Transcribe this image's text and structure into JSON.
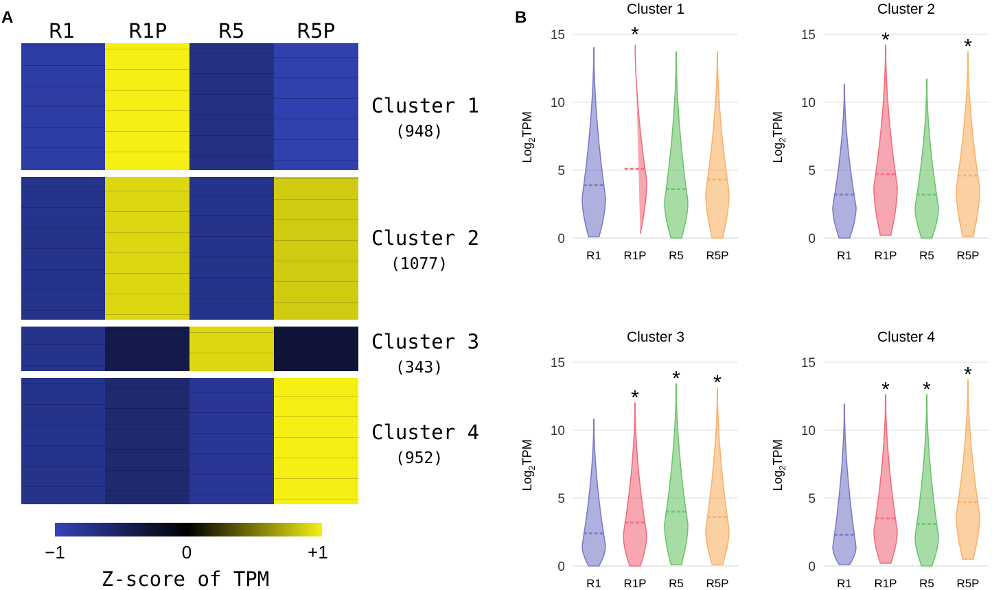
{
  "panel_a": {
    "letter": "A",
    "columns": [
      "R1",
      "R1P",
      "R5",
      "R5P"
    ],
    "clusters": [
      {
        "name": "Cluster 1",
        "count": "(948)"
      },
      {
        "name": "Cluster 2",
        "count": "(1077)"
      },
      {
        "name": "Cluster 3",
        "count": "(343)"
      },
      {
        "name": "Cluster 4",
        "count": "(952)"
      }
    ],
    "colorbar": {
      "min_label": "−1",
      "mid_label": "0",
      "max_label": "+1",
      "title": "Z-score of TPM",
      "colors": {
        "low": "#3344b8",
        "mid": "#000000",
        "high": "#f5ef14"
      }
    }
  },
  "panel_b": {
    "letter": "B",
    "ylabel_base": "Log",
    "ylabel_sub": "2",
    "ylabel_rest": "TPM"
  },
  "chart_data": [
    {
      "type": "heatmap",
      "title": "",
      "xlabel": "",
      "ylabel": "",
      "columns": [
        "R1",
        "R1P",
        "R5",
        "R5P"
      ],
      "rows": [
        "Cluster 1",
        "Cluster 2",
        "Cluster 3",
        "Cluster 4"
      ],
      "row_counts": [
        948,
        1077,
        343,
        952
      ],
      "approx_zscore": [
        [
          -0.9,
          1.0,
          -0.7,
          -0.95
        ],
        [
          -0.75,
          0.9,
          -0.75,
          0.85
        ],
        [
          -0.75,
          -0.4,
          0.9,
          -0.3
        ],
        [
          -0.75,
          -0.6,
          -0.8,
          1.0
        ]
      ],
      "color_range": [
        -1,
        1
      ],
      "colorbar_title": "Z-score of TPM"
    },
    {
      "type": "violin",
      "title": "Cluster 1",
      "xlabel": "",
      "ylabel": "Log2TPM",
      "ylim": [
        0,
        15
      ],
      "yticks": [
        0,
        5,
        10,
        15
      ],
      "categories": [
        "R1",
        "R1P",
        "R5",
        "R5P"
      ],
      "colors": [
        "#7b7bc8",
        "#f26d7d",
        "#6cc46c",
        "#f9b268"
      ],
      "max": [
        14.0,
        14.6,
        13.7,
        13.7
      ],
      "min": [
        0.1,
        0.3,
        0.0,
        0.0
      ],
      "median": [
        3.9,
        5.1,
        3.6,
        4.3
      ],
      "significant": [
        false,
        true,
        false,
        false
      ],
      "star_label": "*"
    },
    {
      "type": "violin",
      "title": "Cluster 2",
      "xlabel": "",
      "ylabel": "Log2TPM",
      "ylim": [
        0,
        15
      ],
      "yticks": [
        0,
        5,
        10,
        15
      ],
      "categories": [
        "R1",
        "R1P",
        "R5",
        "R5P"
      ],
      "colors": [
        "#7b7bc8",
        "#f26d7d",
        "#6cc46c",
        "#f9b268"
      ],
      "max": [
        11.3,
        14.2,
        11.7,
        13.7
      ],
      "min": [
        0.0,
        0.2,
        0.0,
        0.1
      ],
      "median": [
        3.2,
        4.7,
        3.2,
        4.6
      ],
      "significant": [
        false,
        true,
        false,
        true
      ],
      "star_label": "*"
    },
    {
      "type": "violin",
      "title": "Cluster 3",
      "xlabel": "",
      "ylabel": "Log2TPM",
      "ylim": [
        0,
        15
      ],
      "yticks": [
        0,
        5,
        10,
        15
      ],
      "categories": [
        "R1",
        "R1P",
        "R5",
        "R5P"
      ],
      "colors": [
        "#7b7bc8",
        "#f26d7d",
        "#6cc46c",
        "#f9b268"
      ],
      "max": [
        10.8,
        12.0,
        13.4,
        13.1
      ],
      "min": [
        0.0,
        0.0,
        0.1,
        0.1
      ],
      "median": [
        2.4,
        3.2,
        4.0,
        3.6
      ],
      "significant": [
        false,
        true,
        true,
        true
      ],
      "star_label": "*"
    },
    {
      "type": "violin",
      "title": "Cluster 4",
      "xlabel": "",
      "ylabel": "Log2TPM",
      "ylim": [
        0,
        15
      ],
      "yticks": [
        0,
        5,
        10,
        15
      ],
      "categories": [
        "R1",
        "R1P",
        "R5",
        "R5P"
      ],
      "colors": [
        "#7b7bc8",
        "#f26d7d",
        "#6cc46c",
        "#f9b268"
      ],
      "max": [
        11.9,
        12.6,
        12.6,
        13.7
      ],
      "min": [
        0.1,
        0.2,
        0.0,
        0.5
      ],
      "median": [
        2.3,
        3.5,
        3.1,
        4.7
      ],
      "significant": [
        false,
        true,
        true,
        true
      ],
      "star_label": "*"
    }
  ]
}
